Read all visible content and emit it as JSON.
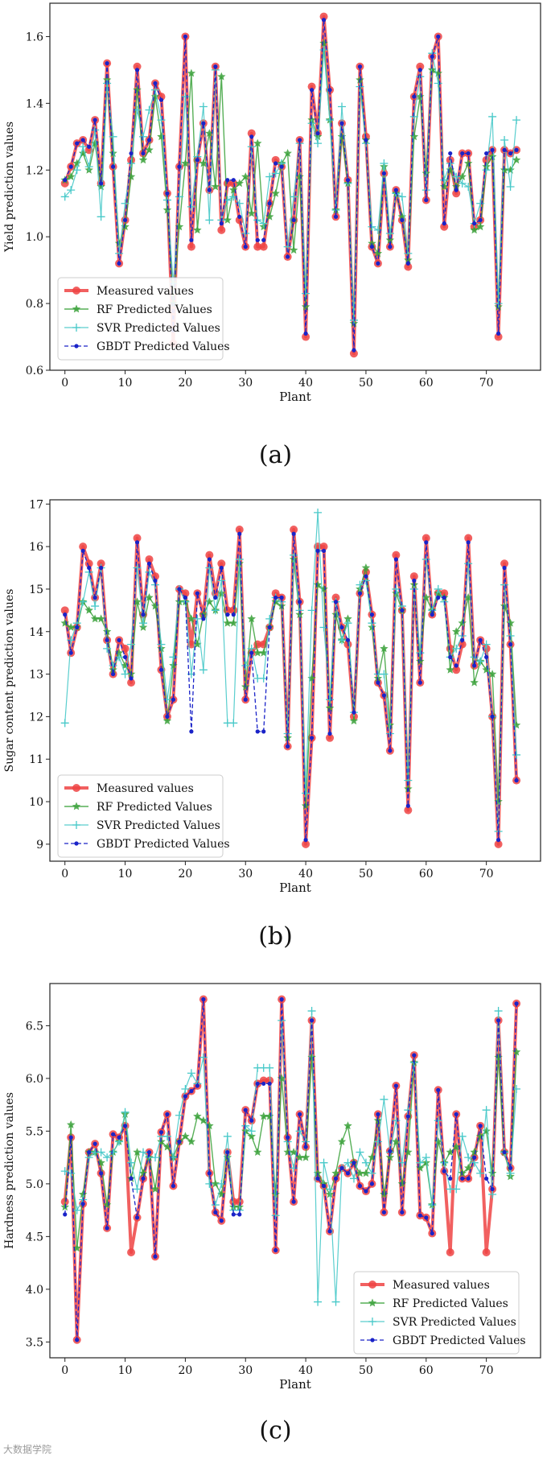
{
  "chart_data": [
    {
      "type": "line",
      "panel": "a",
      "caption": "(a)",
      "xlabel": "Plant",
      "ylabel": "Yield prediction values",
      "xlim": [
        -2.5,
        79
      ],
      "ylim": [
        0.6,
        1.7
      ],
      "xticks": [
        "0",
        "10",
        "20",
        "30",
        "40",
        "50",
        "60",
        "70"
      ],
      "yticks": [
        "0.6",
        "0.8",
        "1.0",
        "1.2",
        "1.4",
        "1.6"
      ],
      "legend_position": "lower-left",
      "series": [
        {
          "name": "Measured values",
          "color": "#ef4444",
          "style": "measured",
          "values": [
            1.16,
            1.21,
            1.28,
            1.29,
            1.26,
            1.35,
            1.16,
            1.52,
            1.21,
            0.92,
            1.05,
            1.23,
            1.51,
            1.25,
            1.29,
            1.46,
            1.42,
            1.13,
            0.68,
            1.21,
            1.6,
            0.97,
            1.23,
            1.34,
            1.14,
            1.51,
            1.02,
            1.16,
            1.16,
            1.05,
            0.97,
            1.31,
            0.97,
            0.97,
            1.1,
            1.23,
            1.21,
            0.94,
            1.05,
            1.29,
            0.7,
            1.45,
            1.31,
            1.66,
            1.44,
            1.06,
            1.34,
            1.17,
            0.65,
            1.51,
            1.3,
            0.97,
            0.92,
            1.19,
            0.97,
            1.14,
            1.05,
            0.91,
            1.42,
            1.51,
            1.11,
            1.54,
            1.6,
            1.03,
            1.23,
            1.13,
            1.25,
            1.25,
            1.03,
            1.05,
            1.23,
            1.26,
            0.7,
            1.26,
            1.25,
            1.26
          ]
        },
        {
          "name": "RF Predicted Values",
          "color": "#3aa13a",
          "style": "rf",
          "values": [
            1.17,
            1.18,
            1.22,
            1.25,
            1.2,
            1.28,
            1.15,
            1.47,
            1.25,
            0.98,
            1.03,
            1.18,
            1.44,
            1.23,
            1.26,
            1.42,
            1.3,
            1.08,
            0.8,
            1.03,
            1.22,
            1.49,
            1.02,
            1.22,
            1.31,
            1.15,
            1.48,
            1.05,
            1.14,
            1.16,
            1.18,
            1.07,
            1.28,
            1.03,
            1.06,
            1.13,
            1.22,
            1.25,
            0.96,
            1.18,
            0.79,
            1.35,
            1.3,
            1.58,
            1.35,
            1.08,
            1.3,
            1.16,
            0.74,
            1.47,
            1.29,
            0.98,
            0.95,
            1.21,
            0.99,
            1.13,
            1.06,
            0.93,
            1.3,
            1.42,
            1.19,
            1.5,
            1.49,
            1.15,
            1.2,
            1.15,
            1.18,
            1.22,
            1.02,
            1.03,
            1.21,
            1.24,
            0.79,
            1.2,
            1.2,
            1.23
          ]
        },
        {
          "name": "SVR Predicted Values",
          "color": "#48c9c9",
          "style": "svr",
          "values": [
            1.12,
            1.14,
            1.2,
            1.27,
            1.21,
            1.32,
            1.06,
            1.46,
            1.3,
            0.95,
            1.1,
            1.22,
            1.38,
            1.3,
            1.38,
            1.44,
            1.35,
            1.11,
            0.86,
            1.12,
            1.42,
            1.09,
            1.24,
            1.39,
            1.05,
            1.5,
            1.05,
            1.11,
            1.12,
            1.1,
            1.01,
            1.27,
            1.05,
            1.04,
            1.18,
            1.19,
            1.22,
            0.97,
            1.12,
            1.28,
            0.83,
            1.34,
            1.28,
            1.56,
            1.35,
            1.08,
            1.39,
            1.16,
            0.75,
            1.45,
            1.28,
            1.03,
            1.02,
            1.22,
            1.01,
            1.13,
            1.12,
            0.95,
            1.36,
            1.48,
            1.14,
            1.55,
            1.46,
            1.17,
            1.22,
            1.18,
            1.16,
            1.15,
            1.04,
            1.1,
            1.2,
            1.36,
            0.8,
            1.29,
            1.15,
            1.35
          ]
        },
        {
          "name": "GBDT Predicted Values",
          "color": "#1a23c8",
          "style": "gbdt",
          "values": [
            1.17,
            1.21,
            1.28,
            1.29,
            1.27,
            1.35,
            1.16,
            1.52,
            1.21,
            0.92,
            1.05,
            1.25,
            1.5,
            1.25,
            1.29,
            1.46,
            1.41,
            1.13,
            0.72,
            1.21,
            1.6,
            0.99,
            1.23,
            1.34,
            1.14,
            1.51,
            1.04,
            1.17,
            1.17,
            1.06,
            0.97,
            1.3,
            0.99,
            0.99,
            1.1,
            1.22,
            1.21,
            0.94,
            1.05,
            1.29,
            0.71,
            1.44,
            1.31,
            1.65,
            1.44,
            1.06,
            1.34,
            1.17,
            0.66,
            1.51,
            1.29,
            0.97,
            0.92,
            1.19,
            0.97,
            1.14,
            1.05,
            0.92,
            1.42,
            1.5,
            1.11,
            1.54,
            1.6,
            1.04,
            1.25,
            1.14,
            1.25,
            1.25,
            1.04,
            1.05,
            1.25,
            1.26,
            0.71,
            1.26,
            1.25,
            1.26
          ]
        }
      ]
    },
    {
      "type": "line",
      "panel": "b",
      "caption": "(b)",
      "xlabel": "Plant",
      "ylabel": "Sugar content prediction values",
      "xlim": [
        -2.5,
        79
      ],
      "ylim": [
        8.6,
        17.1
      ],
      "xticks": [
        "0",
        "10",
        "20",
        "30",
        "40",
        "50",
        "60",
        "70"
      ],
      "yticks": [
        "9",
        "10",
        "11",
        "12",
        "13",
        "14",
        "15",
        "16",
        "17"
      ],
      "legend_position": "lower-left",
      "series": [
        {
          "name": "Measured values",
          "color": "#ef4444",
          "style": "measured",
          "values": [
            14.5,
            13.5,
            14.1,
            16.0,
            15.6,
            14.8,
            15.6,
            13.8,
            13.0,
            13.8,
            13.6,
            12.8,
            16.2,
            14.4,
            15.7,
            15.3,
            13.1,
            12.0,
            12.4,
            15.0,
            14.9,
            13.7,
            14.9,
            14.4,
            15.8,
            14.9,
            15.6,
            14.5,
            14.5,
            16.4,
            12.4,
            13.5,
            13.7,
            13.7,
            14.1,
            14.9,
            14.8,
            11.3,
            16.4,
            14.7,
            9.0,
            11.5,
            16.0,
            16.0,
            11.5,
            14.8,
            14.1,
            13.7,
            12.0,
            14.9,
            15.4,
            14.4,
            12.8,
            12.5,
            11.2,
            15.8,
            14.5,
            9.8,
            15.3,
            12.8,
            16.2,
            14.4,
            14.9,
            14.9,
            13.6,
            13.1,
            13.7,
            16.2,
            13.2,
            13.8,
            13.6,
            12.0,
            9.0,
            15.6,
            13.7,
            10.5
          ]
        },
        {
          "name": "RF Predicted Values",
          "color": "#3aa13a",
          "style": "rf",
          "values": [
            14.2,
            14.1,
            14.1,
            14.7,
            14.5,
            14.3,
            14.3,
            14.0,
            13.1,
            13.5,
            13.2,
            13.0,
            14.7,
            14.1,
            14.8,
            14.6,
            13.6,
            11.9,
            13.2,
            14.7,
            14.7,
            14.3,
            13.7,
            14.4,
            14.7,
            14.5,
            14.9,
            14.2,
            14.2,
            15.6,
            12.7,
            14.3,
            13.5,
            13.5,
            14.1,
            14.7,
            14.6,
            11.5,
            15.7,
            14.4,
            9.9,
            12.9,
            15.1,
            15.0,
            12.2,
            14.4,
            13.8,
            14.3,
            11.9,
            15.0,
            15.5,
            14.1,
            12.9,
            13.6,
            11.8,
            14.9,
            14.5,
            10.3,
            15.1,
            13.3,
            14.8,
            14.5,
            14.9,
            14.8,
            13.1,
            14.0,
            14.2,
            14.8,
            12.8,
            13.3,
            13.1,
            13.0,
            10.0,
            14.6,
            14.2,
            11.8
          ]
        },
        {
          "name": "SVR Predicted Values",
          "color": "#48c9c9",
          "style": "svr",
          "values": [
            11.85,
            13.8,
            14.2,
            14.7,
            15.4,
            14.6,
            15.5,
            13.6,
            13.2,
            13.4,
            13.0,
            13.7,
            15.5,
            14.2,
            15.4,
            15.1,
            13.7,
            12.4,
            13.4,
            15.0,
            14.7,
            13.0,
            14.3,
            13.1,
            15.5,
            14.5,
            15.2,
            11.85,
            11.85,
            15.7,
            13.2,
            13.6,
            12.9,
            12.9,
            14.3,
            14.8,
            14.7,
            11.6,
            15.8,
            14.5,
            10.2,
            14.5,
            16.8,
            14.1,
            12.4,
            14.7,
            13.8,
            14.2,
            12.1,
            15.1,
            15.2,
            14.2,
            13.0,
            13.0,
            11.6,
            15.0,
            14.6,
            10.5,
            15.0,
            13.5,
            15.7,
            14.5,
            15.0,
            14.7,
            13.4,
            13.6,
            13.9,
            15.6,
            13.4,
            13.3,
            13.7,
            12.0,
            9.3,
            15.1,
            13.9,
            11.1
          ]
        },
        {
          "name": "GBDT Predicted Values",
          "color": "#1a23c8",
          "style": "gbdt",
          "values": [
            14.4,
            13.5,
            14.1,
            15.9,
            15.5,
            14.8,
            15.5,
            13.8,
            13.0,
            13.8,
            13.4,
            12.9,
            16.1,
            14.4,
            15.6,
            15.2,
            13.1,
            12.0,
            12.4,
            15.0,
            14.8,
            11.65,
            14.9,
            14.3,
            15.7,
            14.8,
            15.5,
            14.4,
            14.4,
            16.3,
            12.4,
            13.5,
            11.65,
            11.65,
            14.1,
            14.8,
            14.8,
            11.3,
            16.3,
            14.7,
            9.1,
            11.5,
            15.9,
            15.9,
            11.6,
            14.7,
            14.1,
            13.8,
            12.1,
            14.9,
            15.3,
            14.4,
            12.8,
            12.5,
            11.2,
            15.7,
            14.5,
            9.9,
            15.2,
            12.8,
            16.1,
            14.4,
            14.8,
            14.8,
            13.4,
            13.2,
            13.8,
            16.1,
            13.2,
            13.8,
            13.4,
            12.0,
            9.1,
            15.5,
            13.7,
            10.5
          ]
        }
      ]
    },
    {
      "type": "line",
      "panel": "c",
      "caption": "(c)",
      "xlabel": "Plant",
      "ylabel": "Hardness prediction values",
      "xlim": [
        -2.5,
        79
      ],
      "ylim": [
        3.35,
        6.9
      ],
      "xticks": [
        "0",
        "10",
        "20",
        "30",
        "40",
        "50",
        "60",
        "70"
      ],
      "yticks": [
        "3.5",
        "4.0",
        "4.5",
        "5.0",
        "5.5",
        "6.0",
        "6.5"
      ],
      "legend_position": "lower-right",
      "series": [
        {
          "name": "Measured values",
          "color": "#ef4444",
          "style": "measured",
          "values": [
            4.83,
            5.44,
            3.52,
            4.81,
            5.3,
            5.38,
            5.1,
            4.58,
            5.47,
            5.44,
            5.55,
            4.35,
            4.68,
            5.05,
            5.3,
            4.31,
            5.49,
            5.66,
            4.98,
            5.4,
            5.83,
            5.88,
            5.93,
            6.75,
            5.1,
            4.73,
            4.65,
            5.3,
            4.83,
            4.83,
            5.7,
            5.6,
            5.95,
            5.98,
            5.98,
            4.37,
            6.75,
            5.44,
            4.83,
            5.66,
            5.35,
            6.55,
            5.05,
            4.98,
            4.55,
            5.05,
            5.15,
            5.1,
            5.2,
            4.98,
            4.93,
            5.0,
            5.66,
            4.73,
            5.31,
            5.93,
            4.73,
            5.64,
            6.22,
            4.7,
            4.68,
            4.53,
            5.89,
            5.12,
            4.35,
            5.66,
            5.05,
            5.05,
            5.25,
            5.55,
            4.35,
            4.95,
            6.55,
            5.3,
            5.15,
            6.71
          ]
        },
        {
          "name": "RF Predicted Values",
          "color": "#3aa13a",
          "style": "rf",
          "values": [
            4.78,
            5.56,
            4.39,
            4.9,
            5.3,
            5.3,
            5.2,
            4.8,
            5.3,
            5.4,
            5.66,
            5.05,
            5.3,
            5.1,
            5.25,
            4.95,
            5.4,
            5.35,
            5.25,
            5.4,
            5.45,
            5.4,
            5.64,
            5.6,
            5.55,
            5.0,
            4.9,
            5.25,
            4.78,
            4.78,
            5.5,
            5.45,
            5.3,
            5.64,
            5.64,
            4.9,
            6.0,
            5.3,
            5.3,
            5.25,
            5.25,
            6.2,
            5.1,
            5.0,
            4.9,
            5.1,
            5.4,
            5.55,
            5.2,
            5.1,
            5.1,
            5.25,
            5.6,
            4.9,
            5.25,
            5.4,
            5.0,
            5.3,
            6.15,
            5.15,
            5.2,
            4.8,
            5.4,
            5.2,
            5.3,
            5.35,
            5.1,
            5.15,
            5.3,
            5.45,
            5.5,
            5.1,
            6.2,
            5.3,
            5.07,
            6.25
          ]
        },
        {
          "name": "SVR Predicted Values",
          "color": "#48c9c9",
          "style": "svr",
          "values": [
            5.12,
            5.1,
            4.75,
            4.85,
            5.25,
            5.3,
            5.3,
            5.25,
            5.3,
            5.4,
            5.68,
            5.2,
            4.95,
            5.3,
            5.25,
            5.25,
            5.45,
            5.45,
            5.25,
            5.65,
            5.9,
            6.05,
            5.95,
            6.2,
            5.0,
            4.8,
            5.0,
            5.45,
            4.75,
            4.75,
            5.55,
            5.5,
            6.1,
            6.1,
            6.1,
            4.7,
            6.55,
            5.4,
            5.15,
            5.5,
            5.4,
            6.64,
            3.88,
            5.2,
            4.95,
            3.88,
            5.15,
            5.2,
            5.05,
            5.3,
            5.2,
            5.1,
            5.4,
            5.8,
            5.3,
            5.6,
            5.2,
            5.7,
            6.15,
            5.2,
            5.25,
            4.8,
            5.6,
            5.2,
            4.95,
            4.95,
            5.45,
            5.25,
            5.2,
            5.1,
            5.7,
            4.9,
            6.64,
            5.3,
            5.1,
            5.9
          ]
        },
        {
          "name": "GBDT Predicted Values",
          "color": "#1a23c8",
          "style": "gbdt",
          "values": [
            4.71,
            5.44,
            3.52,
            4.81,
            5.3,
            5.38,
            5.1,
            4.58,
            5.47,
            5.44,
            5.55,
            5.05,
            4.68,
            5.05,
            5.3,
            4.31,
            5.49,
            5.66,
            4.98,
            5.4,
            5.83,
            5.88,
            5.93,
            6.75,
            5.1,
            4.73,
            4.65,
            5.3,
            4.71,
            4.71,
            5.7,
            5.6,
            5.95,
            5.95,
            5.95,
            4.37,
            6.75,
            5.44,
            4.83,
            5.66,
            5.35,
            6.55,
            5.05,
            4.98,
            4.55,
            5.05,
            5.15,
            5.1,
            5.2,
            4.98,
            4.93,
            5.0,
            5.66,
            4.73,
            5.31,
            5.93,
            4.73,
            5.64,
            6.22,
            4.7,
            4.68,
            4.53,
            5.89,
            5.12,
            5.05,
            5.66,
            5.05,
            5.05,
            5.25,
            5.55,
            5.05,
            4.95,
            6.55,
            5.3,
            5.15,
            6.71
          ]
        }
      ]
    }
  ],
  "watermark": "大数据学院"
}
